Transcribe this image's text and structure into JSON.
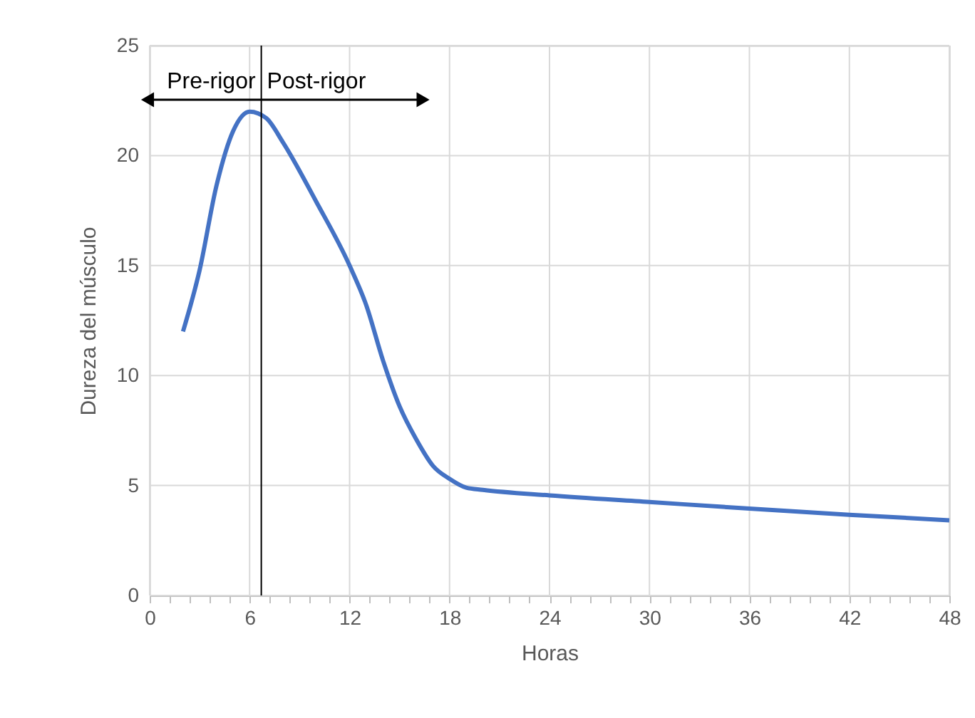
{
  "chart_data": {
    "type": "line",
    "xlabel": "Horas",
    "ylabel": "Dureza del músculo",
    "x": [
      2,
      3,
      4,
      5,
      6,
      7,
      8,
      10,
      12,
      13,
      14,
      15,
      16,
      17,
      18,
      19,
      20,
      24,
      30,
      36,
      42,
      48
    ],
    "series": [
      {
        "color": "#4472c4",
        "values": [
          12,
          14.8,
          18.6,
          21.1,
          22,
          21.7,
          20.6,
          17.9,
          15,
          13.2,
          10.7,
          8.6,
          7.1,
          5.9,
          5.3,
          4.9,
          4.8,
          4.55,
          4.25,
          3.95,
          3.67,
          3.42
        ]
      }
    ],
    "xlim": [
      0,
      48
    ],
    "ylim": [
      0,
      25
    ],
    "xticks": [
      0,
      {
        "value": 1.2,
        "label": null
      },
      {
        "value": 2.4,
        "label": null
      },
      {
        "value": 3.6,
        "label": null
      },
      {
        "value": 4.8,
        "label": null
      },
      6,
      {
        "value": 7.2,
        "label": null
      },
      {
        "value": 8.4,
        "label": null
      },
      {
        "value": 9.6,
        "label": null
      },
      {
        "value": 10.8,
        "label": null
      },
      12,
      {
        "value": 13.2,
        "label": null
      },
      {
        "value": 14.4,
        "label": null
      },
      {
        "value": 15.6,
        "label": null
      },
      {
        "value": 16.8,
        "label": null
      },
      18,
      {
        "value": 19.2,
        "label": null
      },
      {
        "value": 20.4,
        "label": null
      },
      {
        "value": 21.6,
        "label": null
      },
      {
        "value": 22.8,
        "label": null
      },
      24,
      {
        "value": 25.2,
        "label": null
      },
      {
        "value": 26.4,
        "label": null
      },
      {
        "value": 27.6,
        "label": null
      },
      {
        "value": 28.8,
        "label": null
      },
      30,
      {
        "value": 31.2,
        "label": null
      },
      {
        "value": 32.4,
        "label": null
      },
      {
        "value": 33.6,
        "label": null
      },
      {
        "value": 34.8,
        "label": null
      },
      36,
      {
        "value": 37.2,
        "label": null
      },
      {
        "value": 38.4,
        "label": null
      },
      {
        "value": 39.6,
        "label": null
      },
      {
        "value": 40.8,
        "label": null
      },
      42,
      {
        "value": 43.2,
        "label": null
      },
      {
        "value": 44.4,
        "label": null
      },
      {
        "value": 45.6,
        "label": null
      },
      {
        "value": 46.8,
        "label": null
      },
      48
    ],
    "yticks": [
      0,
      5,
      10,
      15,
      20,
      25
    ],
    "grid": true,
    "legend": false,
    "marker": "none",
    "line_style": "solid",
    "ref_lines": [
      {
        "axis": "x",
        "value": 6.7,
        "color": "#000000"
      }
    ],
    "annotations": [
      "Pre-rigor",
      "Post-rigor"
    ]
  }
}
